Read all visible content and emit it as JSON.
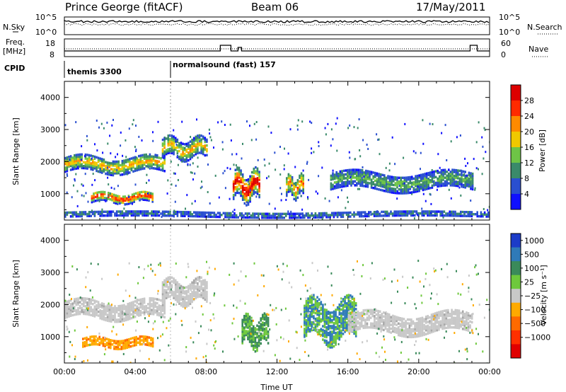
{
  "header": {
    "station": "Prince George (fitACF)",
    "beam": "Beam 06",
    "date": "17/May/2011"
  },
  "noise_panel": {
    "left_label": "N.Sky",
    "right_label": "N.Search",
    "left_ticks": [
      "10^5",
      "10^0"
    ],
    "right_ticks": [
      "10^5",
      "10^0"
    ]
  },
  "freq_panel": {
    "left_label_1": "Freq.",
    "left_label_2": "[MHz]",
    "right_label": "Nave",
    "left_ticks": [
      "18",
      "8"
    ],
    "right_ticks": [
      "60",
      "0"
    ]
  },
  "cpid_panel": {
    "label": "CPID",
    "programs": [
      {
        "name": "themis 3300",
        "start_hour": 0
      },
      {
        "name": "normalsound (fast) 157",
        "start_hour": 6
      }
    ]
  },
  "chart_data": [
    {
      "type": "heatmap",
      "name": "power",
      "ylabel": "Slant Range [km]",
      "xlabel": "",
      "x_range_hours": [
        0,
        24
      ],
      "ylim": [
        180,
        4500
      ],
      "yticks": [
        "1000",
        "2000",
        "3000",
        "4000"
      ],
      "colorbar": {
        "label": "Power [dB]",
        "ticks": [
          "4",
          "8",
          "12",
          "16",
          "20",
          "24",
          "28"
        ],
        "colors": [
          "#1010ff",
          "#2a4fd0",
          "#3a8a6a",
          "#6ec446",
          "#f0c800",
          "#ff8a00",
          "#ff2a00",
          "#dd0000"
        ]
      },
      "features": [
        {
          "t0": 0.0,
          "t1": 5.7,
          "r0": 1650,
          "r1": 2100,
          "level": 4
        },
        {
          "t0": 1.5,
          "t1": 5.0,
          "r0": 700,
          "r1": 1000,
          "level": 6
        },
        {
          "t0": 5.5,
          "t1": 8.0,
          "r0": 2100,
          "r1": 2650,
          "level": 4
        },
        {
          "t0": 9.5,
          "t1": 11.0,
          "r0": 800,
          "r1": 1600,
          "level": 7
        },
        {
          "t0": 12.5,
          "t1": 13.5,
          "r0": 900,
          "r1": 1500,
          "level": 5
        },
        {
          "t0": 15.0,
          "t1": 23.0,
          "r0": 1100,
          "r1": 1600,
          "level": 2
        },
        {
          "t0": 0.0,
          "t1": 24.0,
          "r0": 250,
          "r1": 400,
          "level": 1
        }
      ]
    },
    {
      "type": "heatmap",
      "name": "velocity",
      "ylabel": "Slant Range [km]",
      "xlabel": "Time UT",
      "x_range_hours": [
        0,
        24
      ],
      "ylim": [
        180,
        4500
      ],
      "yticks": [
        "1000",
        "2000",
        "3000",
        "4000"
      ],
      "xticks": [
        "00:00",
        "04:00",
        "08:00",
        "12:00",
        "16:00",
        "20:00",
        "00:00"
      ],
      "colorbar": {
        "label": "Velocity [m s⁻¹]",
        "ticks": [
          "1000",
          "500",
          "100",
          "25",
          "−25",
          "−100",
          "−500",
          "−1000"
        ],
        "colors": [
          "#1c3cc8",
          "#2f7ab8",
          "#3a8a5a",
          "#6ec83c",
          "#c8c8c8",
          "#ffaa00",
          "#ff6a00",
          "#ff3000",
          "#e00000"
        ]
      },
      "features": [
        {
          "t0": 0.0,
          "t1": 5.7,
          "r0": 1550,
          "r1": 2050,
          "level": "ground"
        },
        {
          "t0": 1.0,
          "t1": 5.0,
          "r0": 650,
          "r1": 950,
          "level": "-100"
        },
        {
          "t0": 5.5,
          "t1": 8.0,
          "r0": 2050,
          "r1": 2700,
          "level": "ground"
        },
        {
          "t0": 10.0,
          "t1": 11.5,
          "r0": 700,
          "r1": 1500,
          "level": "100"
        },
        {
          "t0": 13.5,
          "t1": 16.5,
          "r0": 900,
          "r1": 2000,
          "level": "500"
        },
        {
          "t0": 16.0,
          "t1": 23.0,
          "r0": 1100,
          "r1": 1700,
          "level": "ground"
        }
      ]
    }
  ]
}
